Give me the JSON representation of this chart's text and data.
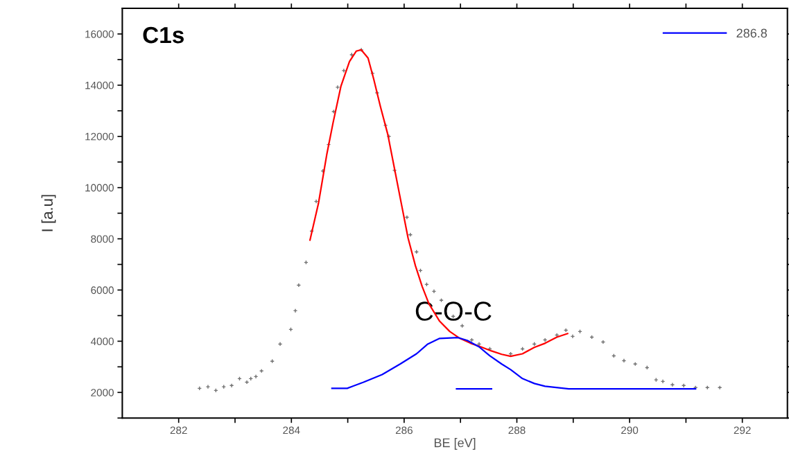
{
  "chart_data": {
    "type": "scatter",
    "xlabel": "BE [eV]",
    "ylabel": "I [a.u]",
    "annotations": [
      "C1s",
      {
        "text": "C-O-C",
        "x": 286.96,
        "y": 4140
      }
    ],
    "xlim": [
      281,
      292.8
    ],
    "ylim": [
      1000,
      17000
    ],
    "xticks": [
      282,
      {
        "value": 283,
        "label": null
      },
      284,
      {
        "value": 285,
        "label": null
      },
      286,
      {
        "value": 287,
        "label": null
      },
      288,
      {
        "value": 289,
        "label": null
      },
      290,
      {
        "value": 291,
        "label": null
      },
      292
    ],
    "yticks": [
      {
        "value": 1000,
        "label": null
      },
      2000,
      {
        "value": 3000,
        "label": null
      },
      4000,
      {
        "value": 5000,
        "label": null
      },
      6000,
      {
        "value": 7000,
        "label": null
      },
      8000,
      {
        "value": 9000,
        "label": null
      },
      10000,
      {
        "value": 11000,
        "label": null
      },
      12000,
      {
        "value": 13000,
        "label": null
      },
      14000,
      {
        "value": 15000,
        "label": null
      },
      16000
    ],
    "grid": false,
    "legend": "top right",
    "series": [
      {
        "color": "#707070",
        "marker": "cross",
        "x": [
          282.37,
          282.52,
          282.66,
          282.8,
          282.94,
          283.08,
          283.21,
          283.28,
          283.37,
          283.47,
          283.66,
          283.8,
          283.99,
          284.07,
          284.13,
          284.26,
          284.36,
          284.44,
          284.56,
          284.66,
          284.75,
          284.82,
          284.93,
          285.07,
          285.24,
          285.44,
          285.52,
          285.67,
          285.73,
          285.83,
          286.05,
          286.11,
          286.22,
          286.29,
          286.4,
          286.53,
          286.66,
          286.87,
          287.03,
          287.2,
          287.33,
          287.52,
          287.89,
          288.1,
          288.31,
          288.5,
          288.71,
          288.87,
          288.99,
          289.12,
          289.33,
          289.53,
          289.72,
          289.9,
          290.1,
          290.31,
          290.47,
          290.59,
          290.76,
          290.96,
          291.17,
          291.38,
          291.6
        ],
        "values": [
          2160,
          2220,
          2080,
          2220,
          2270,
          2540,
          2400,
          2540,
          2620,
          2840,
          3220,
          3890,
          4460,
          5190,
          6190,
          7080,
          8300,
          9460,
          10650,
          11680,
          12970,
          13920,
          14570,
          15190,
          15380,
          14460,
          13700,
          12430,
          12000,
          10680,
          8840,
          8160,
          7490,
          6760,
          6220,
          5950,
          5600,
          4970,
          4600,
          4050,
          3890,
          3700,
          3510,
          3700,
          3890,
          4050,
          4240,
          4430,
          4190,
          4380,
          4160,
          3970,
          3430,
          3240,
          3110,
          2970,
          2490,
          2430,
          2300,
          2270,
          2190,
          2190,
          2190
        ]
      },
      {
        "type": "line",
        "color": "#ff0000",
        "line_style": "solid",
        "x": [
          284.33,
          284.48,
          284.63,
          284.74,
          284.88,
          285.03,
          285.15,
          285.24,
          285.36,
          285.46,
          285.58,
          285.71,
          285.83,
          285.95,
          286.07,
          286.2,
          286.32,
          286.44,
          286.63,
          286.81,
          286.99,
          287.18,
          287.36,
          287.55,
          287.73,
          287.89,
          288.1,
          288.31,
          288.5,
          288.71,
          288.9
        ],
        "values": [
          7950,
          9380,
          11320,
          12540,
          13970,
          14920,
          15330,
          15380,
          15060,
          14240,
          13160,
          12080,
          10730,
          9380,
          8030,
          6950,
          6140,
          5460,
          4780,
          4380,
          4110,
          3920,
          3780,
          3620,
          3490,
          3410,
          3510,
          3760,
          3920,
          4160,
          4300
        ]
      },
      {
        "type": "line",
        "name": "286.8",
        "color": "#0000ff",
        "line_style": "solid",
        "x": [
          284.72,
          284.99,
          285.28,
          285.61,
          285.93,
          286.22,
          286.42,
          286.63,
          286.96,
          287.12,
          287.33,
          287.52,
          287.73,
          287.89,
          288.1,
          288.31,
          288.5,
          288.92,
          291.17
        ],
        "values": [
          2160,
          2160,
          2400,
          2700,
          3110,
          3510,
          3890,
          4110,
          4140,
          4030,
          3780,
          3430,
          3110,
          2890,
          2540,
          2350,
          2240,
          2140,
          2140
        ]
      },
      {
        "type": "line",
        "color": "#0000ff",
        "line_style": "solid",
        "x": [
          286.93,
          287.55
        ],
        "values": [
          2140,
          2140
        ]
      }
    ]
  }
}
